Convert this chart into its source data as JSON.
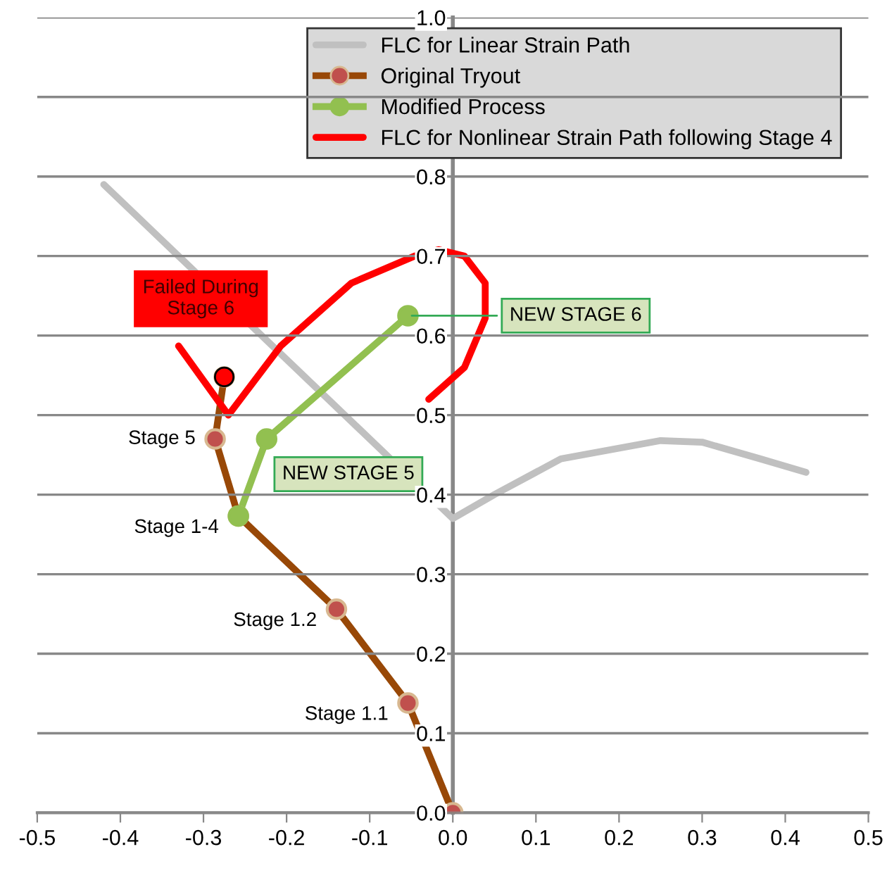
{
  "chart_data": {
    "type": "line",
    "xlim": [
      -0.5,
      0.5
    ],
    "ylim": [
      0,
      1
    ],
    "xticks": [
      -0.5,
      -0.4,
      -0.3,
      -0.2,
      -0.1,
      {
        "value": 0,
        "label": "0.0"
      },
      0.1,
      0.2,
      0.3,
      0.4,
      0.5
    ],
    "yticks": [
      {
        "value": 0,
        "label": "0.0"
      },
      0.1,
      0.2,
      0.3,
      0.4,
      0.5,
      0.6,
      0.7,
      0.8,
      {
        "value": 0.9,
        "label": null
      },
      {
        "value": 1,
        "label": "1.0"
      }
    ],
    "grid": "y",
    "legend": "top right",
    "line_style": "solid",
    "series": [
      {
        "name": "FLC for Linear Strain Path",
        "color": "#c0c0c0",
        "marker": "none",
        "x": [
          -0.42,
          -0.21,
          0,
          0.05,
          0.13,
          0.25,
          0.3,
          0.37,
          0.425
        ],
        "values": [
          0.79,
          0.58,
          0.37,
          0.4,
          0.445,
          0.468,
          0.466,
          0.445,
          0.428
        ]
      },
      {
        "name": "Original Tryout",
        "color": "#984807",
        "marker": "circle",
        "colors": [
          "#c0504d",
          "#c0504d",
          "#c0504d",
          "#c0504d",
          "#c0504d",
          "#c0504d"
        ],
        "x": [
          0,
          -0.054,
          -0.14,
          -0.258,
          -0.286,
          -0.275
        ],
        "values": [
          0,
          0.138,
          0.256,
          0.373,
          0.47,
          0.548
        ]
      },
      {
        "name": "Modified Process",
        "color": "#92c050",
        "marker": "circle",
        "colors": [
          "#92c050",
          "#92c050",
          "#92c050"
        ],
        "x": [
          -0.258,
          -0.224,
          -0.054
        ],
        "values": [
          0.373,
          0.47,
          0.625
        ]
      },
      {
        "name": "FLC for Nonlinear Strain Path following Stage 4",
        "color": "#ff0000",
        "marker": "none",
        "x": [
          -0.33,
          -0.27,
          -0.207,
          -0.122,
          -0.046,
          -0.017,
          0.014,
          0.039,
          0.039,
          0.014,
          -0.029
        ],
        "values": [
          0.587,
          0.5,
          0.587,
          0.666,
          0.7,
          0.708,
          0.7,
          0.666,
          0.622,
          0.56,
          0.52
        ]
      },
      {
        "type": "scatter",
        "color": "#ff0000",
        "marker": "circle",
        "x": [
          -0.275
        ],
        "values": [
          0.548
        ]
      }
    ],
    "annotations": [
      {
        "text": "Stage 1.1",
        "x": -0.054,
        "y": 0.138
      },
      {
        "text": "Stage 1.2",
        "x": -0.14,
        "y": 0.256
      },
      {
        "text": "Stage 1-4",
        "x": -0.258,
        "y": 0.373
      },
      {
        "text": "Stage 5",
        "x": -0.286,
        "y": 0.47
      },
      {
        "text": "Failed During\nStage 6",
        "x": -0.275,
        "y": 0.548
      },
      {
        "text": "NEW STAGE 5",
        "x": -0.224,
        "y": 0.47
      },
      {
        "text": "NEW STAGE 6",
        "x": -0.054,
        "y": 0.625
      }
    ]
  }
}
